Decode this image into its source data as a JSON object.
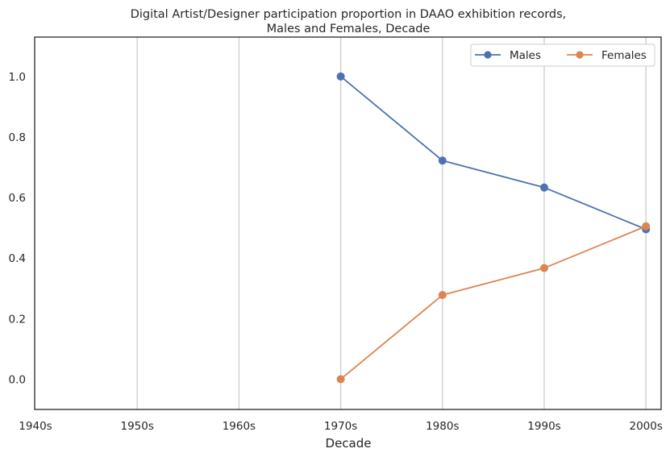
{
  "chart_data": {
    "type": "line",
    "title_lines": [
      "Digital Artist/Designer participation proportion in DAAO exhibition records,",
      "Males and Females, Decade"
    ],
    "xlabel": "Decade",
    "ylabel": "",
    "categories": [
      "1940s",
      "1950s",
      "1960s",
      "1970s",
      "1980s",
      "1990s",
      "2000s"
    ],
    "ylim": [
      -0.1,
      1.13
    ],
    "yticks": [
      0.0,
      0.2,
      0.4,
      0.6,
      0.8,
      1.0
    ],
    "ytick_labels": [
      "0.0",
      "0.2",
      "0.4",
      "0.6",
      "0.8",
      "1.0"
    ],
    "grid": "vertical",
    "legend_position": "top-right",
    "series": [
      {
        "name": "Males",
        "color": "#4c72b0",
        "points": [
          {
            "x": "1970s",
            "y": 1.0
          },
          {
            "x": "1980s",
            "y": 0.722
          },
          {
            "x": "1990s",
            "y": 0.633
          },
          {
            "x": "2000s",
            "y": 0.495
          }
        ]
      },
      {
        "name": "Females",
        "color": "#dd8452",
        "points": [
          {
            "x": "1970s",
            "y": 0.0
          },
          {
            "x": "1980s",
            "y": 0.278
          },
          {
            "x": "1990s",
            "y": 0.367
          },
          {
            "x": "2000s",
            "y": 0.505
          }
        ]
      }
    ],
    "colors": {
      "axis": "#262626",
      "grid": "#cccccc",
      "text": "#262626"
    }
  }
}
